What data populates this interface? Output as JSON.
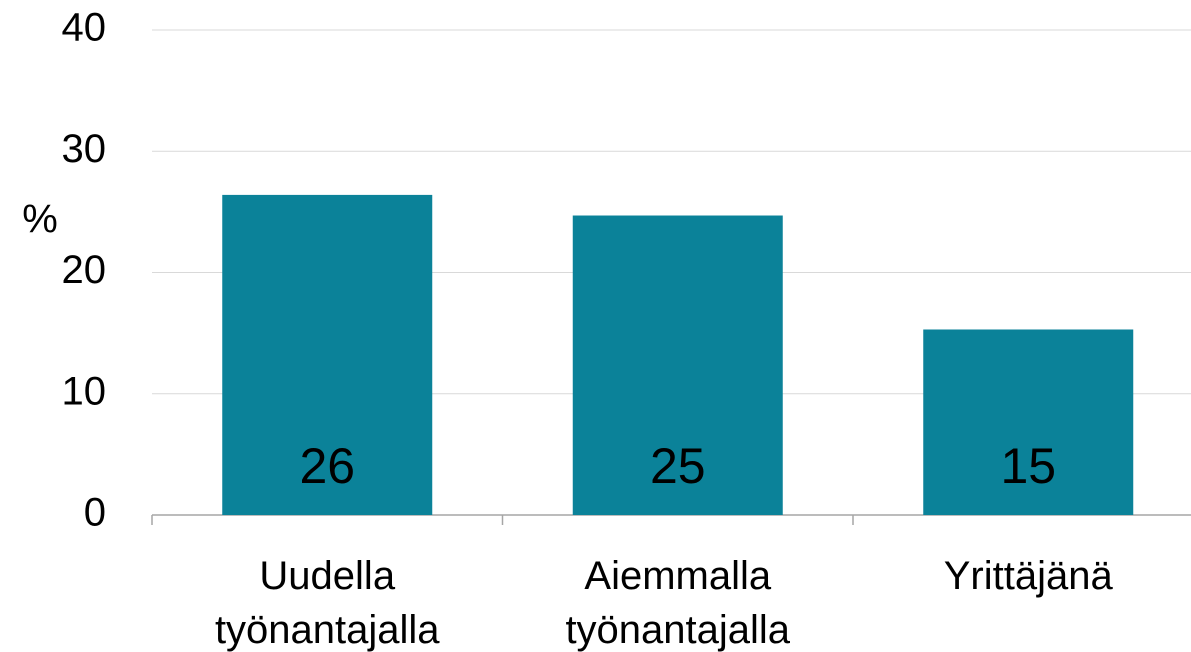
{
  "chart_data": {
    "type": "bar",
    "y_label": "%",
    "categories": [
      "Uudella työnantajalla",
      "Aiemmalla työnantajalla",
      "Yrittäjänä"
    ],
    "values": [
      26.4,
      24.7,
      15.3
    ],
    "value_labels": [
      "26",
      "25",
      "15"
    ],
    "color": "#0b8299",
    "ylim": [
      0,
      40
    ],
    "yticks": [
      0,
      10,
      20,
      30,
      40
    ],
    "grid": true
  }
}
